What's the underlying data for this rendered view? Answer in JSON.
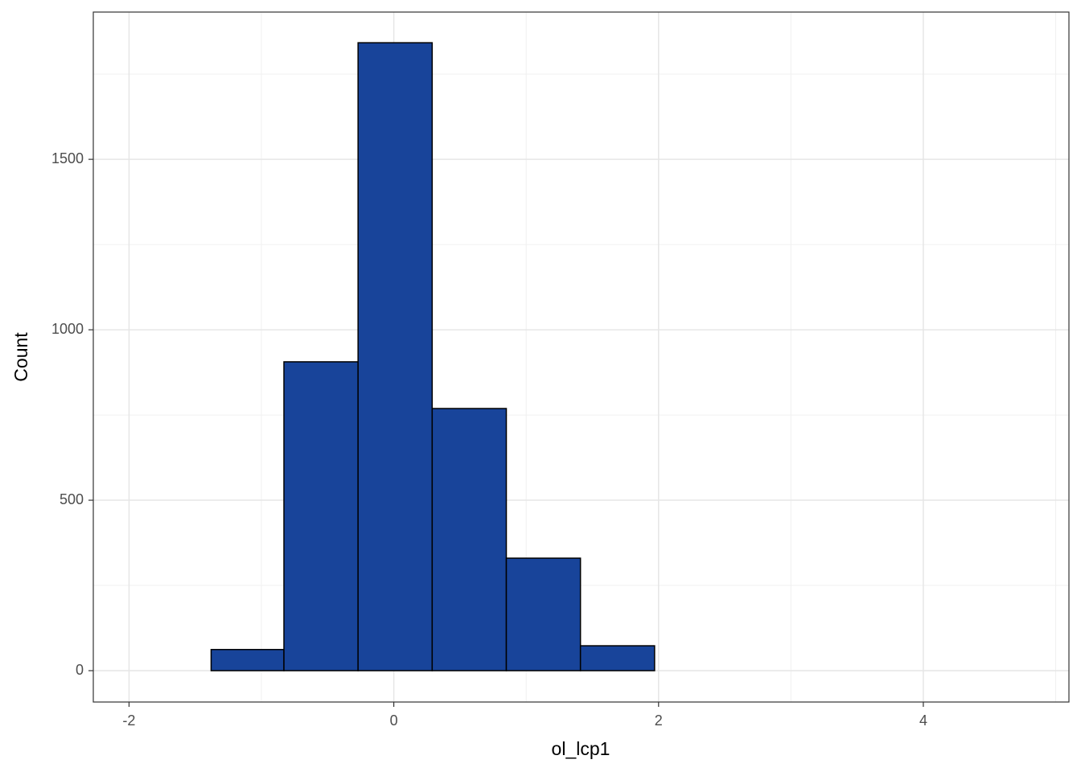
{
  "chart_data": {
    "type": "histogram",
    "x_label": "ol_lcp1",
    "y_label": "Count",
    "bins": [
      -1.94,
      -1.38,
      -0.83,
      -0.27,
      0.29,
      0.85,
      1.41,
      1.97,
      2.53,
      3.09,
      3.65,
      4.21,
      4.76
    ],
    "values": [
      0,
      62,
      906,
      1842,
      769,
      330,
      73,
      0,
      0,
      0,
      0,
      0
    ],
    "color": "#18449a",
    "xlim": [
      -2.27,
      5.1
    ],
    "ylim": [
      -92,
      1932
    ],
    "xticks": [
      -2,
      0,
      2,
      4
    ],
    "yticks": [
      0,
      500,
      1000,
      1500
    ],
    "x_minor_grid": [
      -1,
      1,
      3,
      5
    ],
    "y_minor_grid": [
      250,
      750,
      1250,
      1750
    ],
    "grid": true
  }
}
